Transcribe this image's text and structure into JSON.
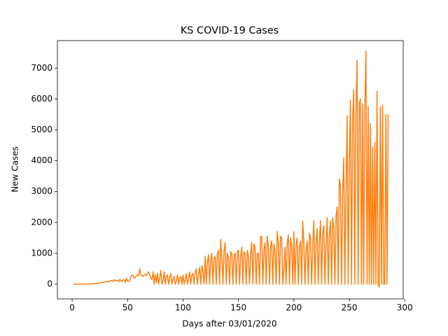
{
  "chart_data": {
    "type": "line",
    "title": "KS COVID-19 Cases",
    "x_label": "Days after 03/01/2020",
    "y_label": "New Cases",
    "xlim": [
      -13.3,
      298.6
    ],
    "ylim": [
      -476,
      7890
    ],
    "xticks": [
      0,
      50,
      100,
      150,
      200,
      250,
      300
    ],
    "yticks": [
      0,
      1000,
      2000,
      3000,
      4000,
      5000,
      6000,
      7000
    ],
    "x": [
      1,
      2,
      3,
      4,
      5,
      6,
      7,
      8,
      9,
      10,
      11,
      12,
      13,
      14,
      15,
      16,
      17,
      18,
      19,
      20,
      21,
      22,
      23,
      24,
      25,
      26,
      27,
      28,
      29,
      30,
      31,
      32,
      33,
      34,
      35,
      36,
      37,
      38,
      39,
      40,
      41,
      42,
      43,
      44,
      45,
      46,
      47,
      48,
      49,
      50,
      51,
      52,
      53,
      54,
      55,
      56,
      57,
      58,
      59,
      60,
      61,
      62,
      63,
      64,
      65,
      66,
      67,
      68,
      69,
      70,
      71,
      72,
      73,
      74,
      75,
      76,
      77,
      78,
      79,
      80,
      81,
      82,
      83,
      84,
      85,
      86,
      87,
      88,
      89,
      90,
      91,
      92,
      93,
      94,
      95,
      96,
      97,
      98,
      99,
      100,
      101,
      102,
      103,
      104,
      105,
      106,
      107,
      108,
      109,
      110,
      111,
      112,
      113,
      114,
      115,
      116,
      117,
      118,
      119,
      120,
      121,
      122,
      123,
      124,
      125,
      126,
      127,
      128,
      129,
      130,
      131,
      132,
      133,
      134,
      135,
      136,
      137,
      138,
      139,
      140,
      141,
      142,
      143,
      144,
      145,
      146,
      147,
      148,
      149,
      150,
      151,
      152,
      153,
      154,
      155,
      156,
      157,
      158,
      159,
      160,
      161,
      162,
      163,
      164,
      165,
      166,
      167,
      168,
      169,
      170,
      171,
      172,
      173,
      174,
      175,
      176,
      177,
      178,
      179,
      180,
      181,
      182,
      183,
      184,
      185,
      186,
      187,
      188,
      189,
      190,
      191,
      192,
      193,
      194,
      195,
      196,
      197,
      198,
      199,
      200,
      201,
      202,
      203,
      204,
      205,
      206,
      207,
      208,
      209,
      210,
      211,
      212,
      213,
      214,
      215,
      216,
      217,
      218,
      219,
      220,
      221,
      222,
      223,
      224,
      225,
      226,
      227,
      228,
      229,
      230,
      231,
      232,
      233,
      234,
      235,
      236,
      237,
      238,
      239,
      240,
      241,
      242,
      243,
      244,
      245,
      246,
      247,
      248,
      249,
      250,
      251,
      252,
      253,
      254,
      255,
      256,
      257,
      258,
      259,
      260,
      261,
      262,
      263,
      264,
      265,
      266,
      267,
      268,
      269,
      270,
      271,
      272,
      273,
      274,
      275,
      276,
      277,
      278,
      279,
      280,
      281,
      282,
      283,
      284,
      285
    ],
    "series": [
      {
        "color": "#ff7f0e",
        "values": [
          0,
          0,
          0,
          0,
          0,
          0,
          1,
          2,
          1,
          3,
          2,
          5,
          4,
          6,
          8,
          10,
          12,
          15,
          14,
          18,
          20,
          22,
          25,
          30,
          35,
          60,
          55,
          70,
          65,
          80,
          90,
          75,
          100,
          85,
          120,
          110,
          90,
          150,
          100,
          130,
          120,
          80,
          160,
          100,
          90,
          150,
          130,
          60,
          200,
          100,
          90,
          120,
          250,
          300,
          280,
          200,
          220,
          260,
          300,
          280,
          500,
          300,
          280,
          250,
          300,
          320,
          280,
          350,
          400,
          300,
          200,
          150,
          400,
          0,
          300,
          50,
          350,
          0,
          200,
          450,
          0,
          100,
          400,
          0,
          250,
          300,
          0,
          200,
          350,
          0,
          150,
          250,
          0,
          100,
          300,
          0,
          200,
          250,
          0,
          300,
          0,
          150,
          350,
          0,
          200,
          400,
          0,
          300,
          350,
          0,
          400,
          500,
          0,
          300,
          550,
          0,
          600,
          400,
          0,
          900,
          0,
          700,
          950,
          0,
          800,
          1000,
          0,
          850,
          900,
          0,
          1000,
          1100,
          0,
          1450,
          900,
          0,
          1100,
          1350,
          0,
          1000,
          850,
          0,
          1050,
          1000,
          0,
          950,
          1000,
          0,
          1050,
          1100,
          0,
          900,
          1200,
          0,
          1050,
          1000,
          0,
          1100,
          900,
          0,
          1000,
          1350,
          0,
          1300,
          1200,
          0,
          1000,
          1000,
          0,
          1550,
          1550,
          0,
          1100,
          1350,
          0,
          1550,
          1250,
          0,
          1200,
          1400,
          0,
          1300,
          1100,
          0,
          1700,
          1300,
          0,
          1550,
          1500,
          0,
          500,
          1200,
          0,
          1300,
          1600,
          0,
          1500,
          1250,
          0,
          1700,
          0,
          1300,
          1500,
          0,
          1200,
          1400,
          0,
          2050,
          1300,
          0,
          1100,
          1400,
          0,
          1650,
          1500,
          0,
          1200,
          2050,
          0,
          1350,
          1800,
          0,
          1400,
          2050,
          0,
          1650,
          1900,
          0,
          1350,
          2150,
          0,
          1550,
          2050,
          0,
          2150,
          1850,
          0,
          2200,
          2500,
          0,
          3400,
          3200,
          0,
          2900,
          4100,
          0,
          2950,
          5450,
          0,
          3900,
          5950,
          0,
          5300,
          6300,
          0,
          5600,
          7250,
          0,
          5850,
          6000,
          0,
          5850,
          0,
          5750,
          7550,
          0,
          5750,
          0,
          5200,
          0,
          4450,
          0,
          4600,
          0,
          6250,
          0,
          -100,
          5750,
          0,
          5800,
          0,
          0,
          5500,
          0,
          5500
        ]
      }
    ]
  }
}
